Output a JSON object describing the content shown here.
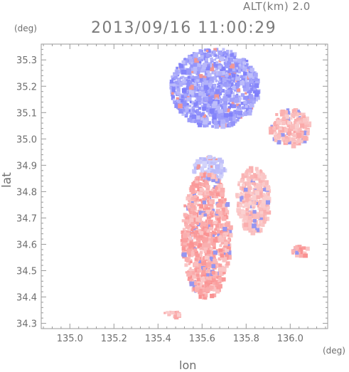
{
  "header": {
    "altitude_label": "ALT(km) 2.0",
    "timestamp": "2013/09/16 11:00:29"
  },
  "chart_data": {
    "type": "heatmap",
    "title": "2013/09/16 11:00:29",
    "subtitle": "ALT(km) 2.0",
    "xlabel": "lon",
    "ylabel": "lat",
    "xunit": "(deg)",
    "yunit": "(deg)",
    "xlim": [
      134.87,
      136.17
    ],
    "ylim": [
      34.28,
      35.36
    ],
    "xticks": [
      "135.0",
      "135.2",
      "135.4",
      "135.6",
      "135.8",
      "136.0"
    ],
    "yticks": [
      "34.3",
      "34.4",
      "34.5",
      "34.6",
      "34.7",
      "34.8",
      "34.9",
      "35.0",
      "35.1",
      "35.2",
      "35.3"
    ],
    "grid": false,
    "colors": {
      "positive": "#f08080",
      "negative": "#8888ee",
      "frame": "#9a9a9a"
    },
    "regions": [
      {
        "sign": "negative",
        "lon": [
          135.45,
          135.85
        ],
        "lat": [
          35.05,
          35.35
        ],
        "intensity": 0.6
      },
      {
        "sign": "negative",
        "lon": [
          135.55,
          135.7
        ],
        "lat": [
          34.85,
          34.94
        ],
        "intensity": 0.3
      },
      {
        "sign": "positive",
        "lon": [
          135.5,
          135.72
        ],
        "lat": [
          34.4,
          34.88
        ],
        "intensity": 0.5
      },
      {
        "sign": "positive",
        "lon": [
          135.75,
          135.9
        ],
        "lat": [
          34.65,
          34.9
        ],
        "intensity": 0.35
      },
      {
        "sign": "positive",
        "lon": [
          136.0,
          136.08
        ],
        "lat": [
          34.56,
          34.6
        ],
        "intensity": 0.55
      },
      {
        "sign": "positive",
        "lon": [
          135.9,
          136.08
        ],
        "lat": [
          34.98,
          35.12
        ],
        "intensity": 0.4
      },
      {
        "sign": "positive",
        "lon": [
          135.42,
          135.5
        ],
        "lat": [
          34.33,
          34.35
        ],
        "intensity": 0.4
      }
    ]
  }
}
